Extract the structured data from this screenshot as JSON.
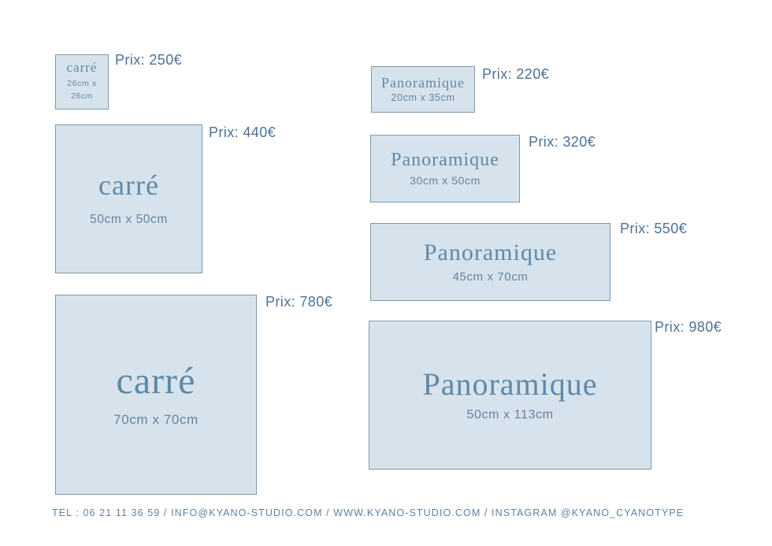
{
  "page": {
    "background": "#ffffff",
    "box_fill": "#d7e3ec",
    "box_border": "#7d98ae",
    "title_color": "#6089a8",
    "price_color": "#4d7296",
    "footer_color": "#5e82a6"
  },
  "products": [
    {
      "id": "carre-26",
      "name": "carré",
      "dimensions": "26cm x 26cm",
      "price_label": "Prix: 250€"
    },
    {
      "id": "carre-50",
      "name": "carré",
      "dimensions": "50cm x 50cm",
      "price_label": "Prix: 440€"
    },
    {
      "id": "carre-70",
      "name": "carré",
      "dimensions": "70cm x 70cm",
      "price_label": "Prix: 780€"
    },
    {
      "id": "pano-20x35",
      "name": "Panoramique",
      "dimensions": "20cm x 35cm",
      "price_label": "Prix: 220€"
    },
    {
      "id": "pano-30x50",
      "name": "Panoramique",
      "dimensions": "30cm x 50cm",
      "price_label": "Prix: 320€"
    },
    {
      "id": "pano-45x70",
      "name": "Panoramique",
      "dimensions": "45cm x 70cm",
      "price_label": "Prix: 550€"
    },
    {
      "id": "pano-50x113",
      "name": "Panoramique",
      "dimensions": "50cm x 113cm",
      "price_label": "Prix: 980€"
    }
  ],
  "footer": {
    "contact_line": "TEL : 06 21 11 36 59 / INFO@KYANO-STUDIO.COM / WWW.KYANO-STUDIO.COM / INSTAGRAM @KYANO_CYANOTYPE"
  }
}
